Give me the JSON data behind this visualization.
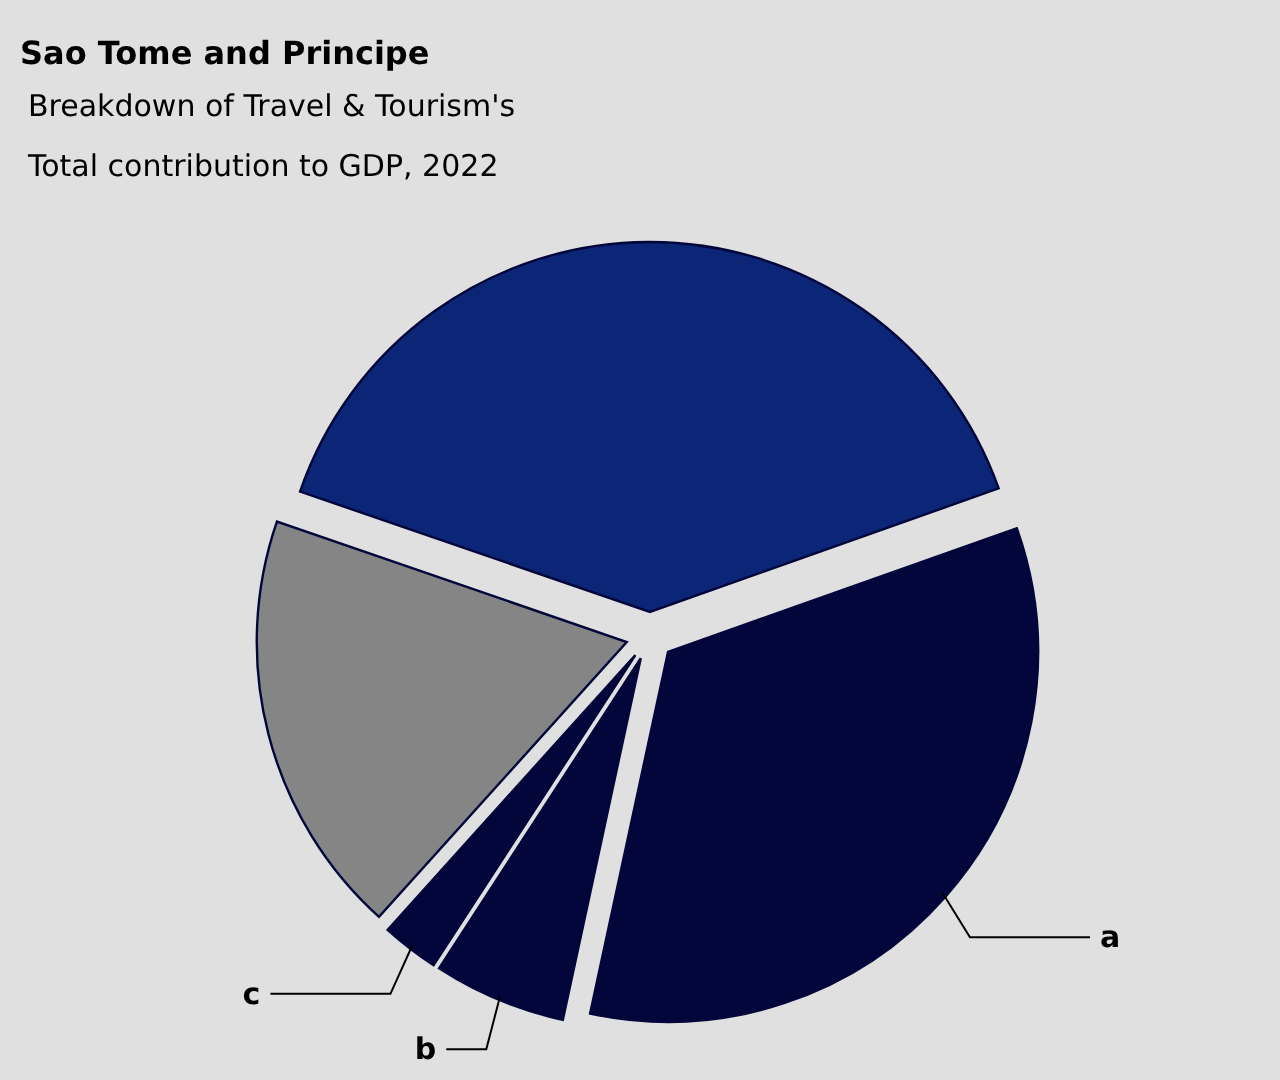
{
  "chart_data": {
    "type": "pie",
    "title": "Sao Tome and Principe",
    "subtitle": "Breakdown of Travel & Tourism's Total contribution to GDP, 2022",
    "categories": [
      null,
      "a",
      "b",
      "c",
      null
    ],
    "values": [
      39.3,
      33.8,
      5.8,
      2.5,
      18.6
    ],
    "colors": [
      "#0b2677",
      "#03063a",
      "#03063a",
      "#03063a",
      "#858585"
    ]
  }
}
